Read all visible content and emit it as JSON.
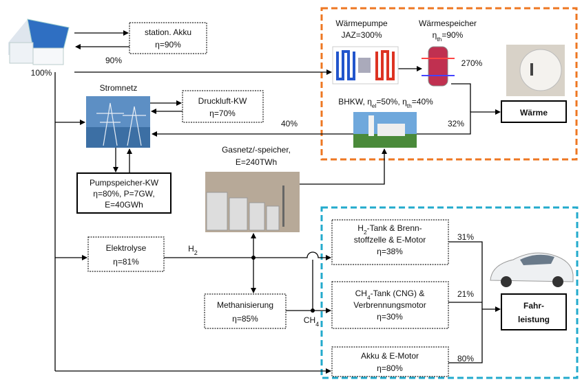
{
  "texts": {
    "akku": [
      [
        "station. Akku"
      ],
      [
        "η=90%"
      ]
    ],
    "waermepumpe": [
      [
        "Wärmepumpe"
      ],
      [
        "JAZ=300%"
      ]
    ],
    "waermespeicher": [
      [
        "Wärmespeicher"
      ],
      [
        "η",
        {
          "sub": "th"
        },
        "=90%"
      ]
    ],
    "waerme": [
      [
        "Wärme"
      ]
    ],
    "bhkw": [
      [
        "BHKW, η",
        {
          "sub": "el"
        },
        "=50%, η",
        {
          "sub": "th"
        },
        "=40%"
      ]
    ],
    "stromnetz": [
      [
        "Stromnetz"
      ]
    ],
    "druckluft": [
      [
        "Druckluft-KW"
      ],
      [
        "η=70%"
      ]
    ],
    "pumpspeicher": [
      [
        "Pumpspeicher-KW"
      ],
      [
        "η=80%, P=7GW,"
      ],
      [
        "E=40GWh"
      ]
    ],
    "gasnetz": [
      [
        "Gasnetz/-speicher,"
      ],
      [
        "E=240TWh"
      ]
    ],
    "elektrolyse": [
      [
        "Elektrolyse"
      ],
      [
        "η=81%"
      ]
    ],
    "methanisierung": [
      [
        "Methanisierung"
      ],
      [
        "η=85%"
      ]
    ],
    "h2_tank": [
      [
        "H",
        {
          "sub": "2"
        },
        "-Tank & Brenn-"
      ],
      [
        "stoffzelle & E-Motor"
      ],
      [
        "η=38%"
      ]
    ],
    "ch4_tank": [
      [
        "CH",
        {
          "sub": "4"
        },
        "-Tank (CNG) &"
      ],
      [
        "Verbrennungsmotor"
      ],
      [
        "η=30%"
      ]
    ],
    "akku_motor": [
      [
        "Akku & E-Motor"
      ],
      [
        "η=80%"
      ]
    ],
    "fahrleistung": [
      [
        "Fahr-"
      ],
      [
        "leistung"
      ]
    ],
    "p100": [
      [
        "100%"
      ]
    ],
    "p90": [
      [
        "90%"
      ]
    ],
    "p270": [
      [
        "270%"
      ]
    ],
    "p40": [
      [
        "40%"
      ]
    ],
    "p32": [
      [
        "32%"
      ]
    ],
    "p31": [
      [
        "31%"
      ]
    ],
    "p21": [
      [
        "21%"
      ]
    ],
    "p80": [
      [
        "80%"
      ]
    ],
    "h2": [
      [
        "H",
        {
          "sub": "2"
        }
      ]
    ],
    "ch4": [
      [
        "CH",
        {
          "sub": "4"
        }
      ]
    ]
  }
}
